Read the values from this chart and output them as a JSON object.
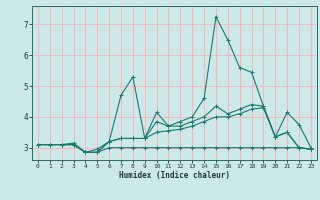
{
  "title": "",
  "xlabel": "Humidex (Indice chaleur)",
  "background_color": "#cde8e8",
  "grid_color": "#f5b8b8",
  "line_color": "#1a7a6e",
  "xlim": [
    -0.5,
    23.5
  ],
  "ylim": [
    2.6,
    7.6
  ],
  "yticks": [
    3,
    4,
    5,
    6,
    7
  ],
  "xticks": [
    0,
    1,
    2,
    3,
    4,
    5,
    6,
    7,
    8,
    9,
    10,
    11,
    12,
    13,
    14,
    15,
    16,
    17,
    18,
    19,
    20,
    21,
    22,
    23
  ],
  "series": [
    [
      3.1,
      3.1,
      3.1,
      3.1,
      2.85,
      2.85,
      3.2,
      4.7,
      5.3,
      3.3,
      4.15,
      3.7,
      3.85,
      4.0,
      4.6,
      7.25,
      6.5,
      5.6,
      5.45,
      4.35,
      3.35,
      4.15,
      3.75,
      3.0
    ],
    [
      3.1,
      3.1,
      3.1,
      3.1,
      2.85,
      2.85,
      3.2,
      3.3,
      3.3,
      3.3,
      3.85,
      3.7,
      3.7,
      3.85,
      4.0,
      4.35,
      4.1,
      4.25,
      4.4,
      4.35,
      3.35,
      3.5,
      3.0,
      2.95
    ],
    [
      3.1,
      3.1,
      3.1,
      3.15,
      2.85,
      2.95,
      3.2,
      3.3,
      3.3,
      3.3,
      3.5,
      3.55,
      3.6,
      3.7,
      3.85,
      4.0,
      4.0,
      4.1,
      4.25,
      4.3,
      3.35,
      3.5,
      3.0,
      2.95
    ],
    [
      3.1,
      3.1,
      3.1,
      3.1,
      2.85,
      2.85,
      3.0,
      3.0,
      3.0,
      3.0,
      3.0,
      3.0,
      3.0,
      3.0,
      3.0,
      3.0,
      3.0,
      3.0,
      3.0,
      3.0,
      3.0,
      3.0,
      3.0,
      2.95
    ]
  ]
}
